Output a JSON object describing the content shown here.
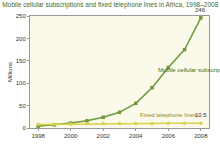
{
  "chart_data": {
    "type": "line",
    "title": "Mobile cellular subscriptions and fixed telephone lines in Africa, 1998–2008",
    "y_label": "Millions",
    "x": [
      1998,
      1999,
      2000,
      2001,
      2002,
      2003,
      2004,
      2005,
      2006,
      2007,
      2008
    ],
    "series": [
      {
        "name": "Mobile cellular subscriptions",
        "color": "#6a9a3a",
        "marker": "square",
        "line_style": "solid",
        "values": [
          4,
          7,
          11,
          16,
          24,
          35,
          55,
          90,
          135,
          175,
          246
        ]
      },
      {
        "name": "Fixed telephone lines",
        "color": "#d6d24a",
        "marker": "circle",
        "line_style": "solid",
        "values": [
          8,
          8.5,
          9,
          9.5,
          9.8,
          10,
          10.2,
          10.3,
          10.4,
          10.5,
          10.5
        ]
      }
    ],
    "annotations": [
      {
        "text": "246",
        "x": 2008,
        "y": 246
      },
      {
        "text": "10.5",
        "x": 2008,
        "y": 10.5
      }
    ],
    "xlim": [
      1997.5,
      2008.5
    ],
    "xticks": [
      1998,
      2000,
      2002,
      2004,
      2006,
      2008
    ],
    "ylim": [
      0,
      250
    ],
    "yticks": [
      0,
      50,
      100,
      150,
      200,
      250
    ],
    "grid": false
  }
}
